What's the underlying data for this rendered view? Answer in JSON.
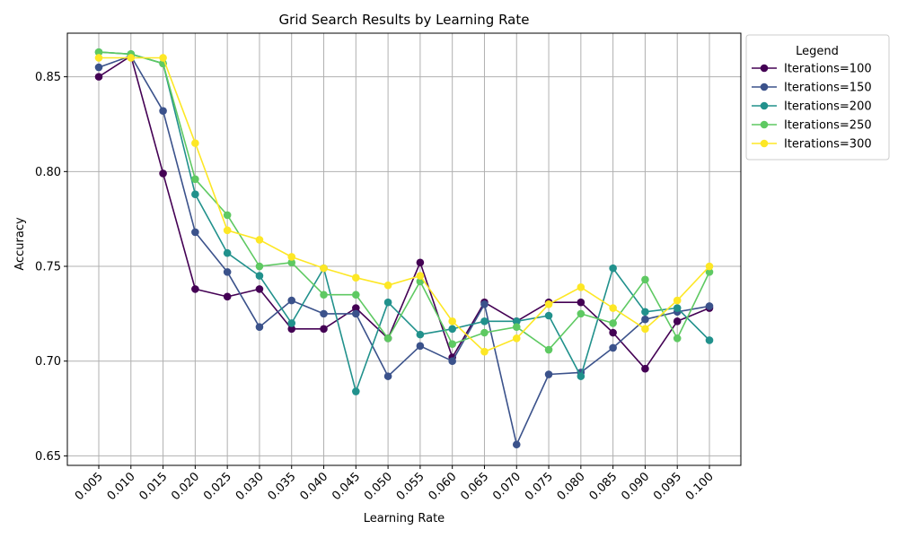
{
  "chart_data": {
    "type": "line",
    "title": "Grid Search Results by Learning Rate",
    "xlabel": "Learning Rate",
    "ylabel": "Accuracy",
    "categories": [
      "0.005",
      "0.010",
      "0.015",
      "0.020",
      "0.025",
      "0.030",
      "0.035",
      "0.040",
      "0.045",
      "0.050",
      "0.055",
      "0.060",
      "0.065",
      "0.070",
      "0.075",
      "0.080",
      "0.085",
      "0.090",
      "0.095",
      "0.100"
    ],
    "ylim": [
      0.645,
      0.873
    ],
    "yticks": [
      0.65,
      0.7,
      0.75,
      0.8,
      0.85
    ],
    "ytick_labels": [
      "0.65",
      "0.70",
      "0.75",
      "0.80",
      "0.85"
    ],
    "grid": true,
    "legend_title": "Legend",
    "legend_position": "outside-right-top",
    "series": [
      {
        "name": "Iterations=100",
        "color": "#440154",
        "values": [
          0.85,
          0.861,
          0.799,
          0.738,
          0.734,
          0.738,
          0.717,
          0.717,
          0.728,
          0.712,
          0.752,
          0.702,
          0.731,
          0.721,
          0.731,
          0.731,
          0.715,
          0.696,
          0.721,
          0.728
        ]
      },
      {
        "name": "Iterations=150",
        "color": "#3b528b",
        "values": [
          0.855,
          0.861,
          0.832,
          0.768,
          0.747,
          0.718,
          0.732,
          0.725,
          0.725,
          0.692,
          0.708,
          0.7,
          0.73,
          0.656,
          0.693,
          0.694,
          0.707,
          0.722,
          0.726,
          0.729
        ]
      },
      {
        "name": "Iterations=200",
        "color": "#21918c",
        "values": [
          0.863,
          0.862,
          0.857,
          0.788,
          0.757,
          0.745,
          0.72,
          0.749,
          0.684,
          0.731,
          0.714,
          0.717,
          0.721,
          0.721,
          0.724,
          0.692,
          0.749,
          0.726,
          0.728,
          0.711
        ]
      },
      {
        "name": "Iterations=250",
        "color": "#5ec962",
        "values": [
          0.863,
          0.862,
          0.857,
          0.796,
          0.777,
          0.75,
          0.752,
          0.735,
          0.735,
          0.712,
          0.742,
          0.709,
          0.715,
          0.718,
          0.706,
          0.725,
          0.72,
          0.743,
          0.712,
          0.747
        ]
      },
      {
        "name": "Iterations=300",
        "color": "#fde725",
        "values": [
          0.86,
          0.86,
          0.86,
          0.815,
          0.769,
          0.764,
          0.755,
          0.749,
          0.744,
          0.74,
          0.745,
          0.721,
          0.705,
          0.712,
          0.73,
          0.739,
          0.728,
          0.717,
          0.732,
          0.75
        ]
      }
    ]
  }
}
